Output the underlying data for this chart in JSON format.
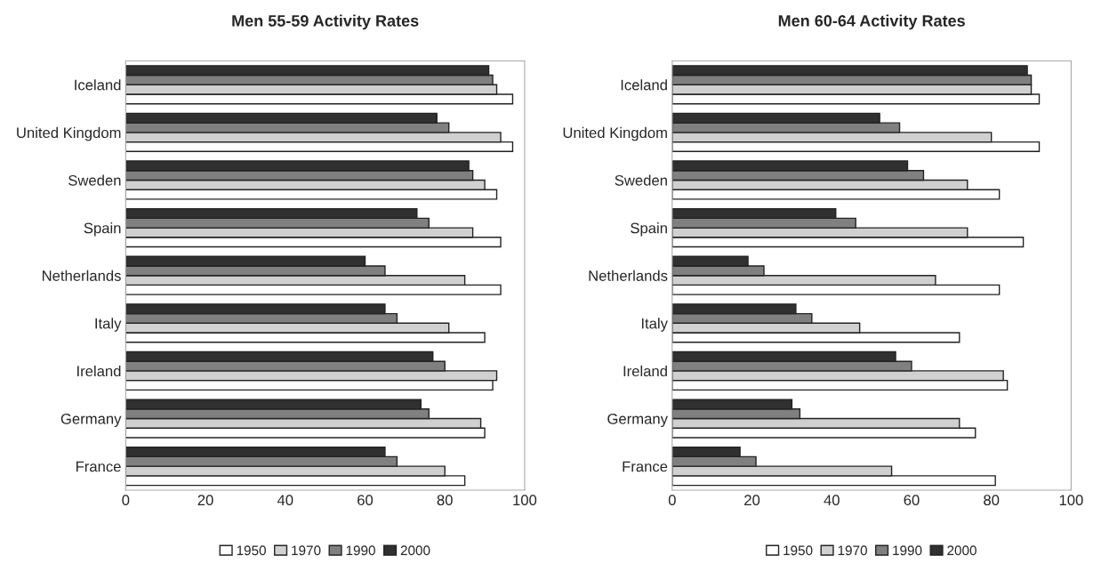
{
  "chart_data": [
    {
      "type": "bar",
      "orientation": "horizontal",
      "title": "Men 55-59 Activity Rates",
      "categories": [
        "Iceland",
        "United Kingdom",
        "Sweden",
        "Spain",
        "Netherlands",
        "Italy",
        "Ireland",
        "Germany",
        "France"
      ],
      "series": [
        {
          "name": "1950",
          "color": "#ffffff",
          "values": [
            97,
            97,
            93,
            94,
            94,
            90,
            92,
            90,
            85
          ]
        },
        {
          "name": "1970",
          "color": "#d0d0d0",
          "values": [
            93,
            94,
            90,
            87,
            85,
            81,
            93,
            89,
            80
          ]
        },
        {
          "name": "1990",
          "color": "#808080",
          "values": [
            92,
            81,
            87,
            76,
            65,
            68,
            80,
            76,
            68
          ]
        },
        {
          "name": "2000",
          "color": "#303030",
          "values": [
            91,
            78,
            86,
            73,
            60,
            65,
            77,
            74,
            65
          ]
        }
      ],
      "xlim": [
        0,
        100
      ],
      "xticks": [
        0,
        20,
        40,
        60,
        80,
        100
      ],
      "grid": false,
      "legend": "bottom"
    },
    {
      "type": "bar",
      "orientation": "horizontal",
      "title": "Men 60-64 Activity Rates",
      "categories": [
        "Iceland",
        "United Kingdom",
        "Sweden",
        "Spain",
        "Netherlands",
        "Italy",
        "Ireland",
        "Germany",
        "France"
      ],
      "series": [
        {
          "name": "1950",
          "color": "#ffffff",
          "values": [
            92,
            92,
            82,
            88,
            82,
            72,
            84,
            76,
            81
          ]
        },
        {
          "name": "1970",
          "color": "#d0d0d0",
          "values": [
            90,
            80,
            74,
            74,
            66,
            47,
            83,
            72,
            55
          ]
        },
        {
          "name": "1990",
          "color": "#808080",
          "values": [
            90,
            57,
            63,
            46,
            23,
            35,
            60,
            32,
            21
          ]
        },
        {
          "name": "2000",
          "color": "#303030",
          "values": [
            89,
            52,
            59,
            41,
            19,
            31,
            56,
            30,
            17
          ]
        }
      ],
      "xlim": [
        0,
        100
      ],
      "xticks": [
        0,
        20,
        40,
        60,
        80,
        100
      ],
      "grid": false,
      "legend": "bottom"
    }
  ]
}
